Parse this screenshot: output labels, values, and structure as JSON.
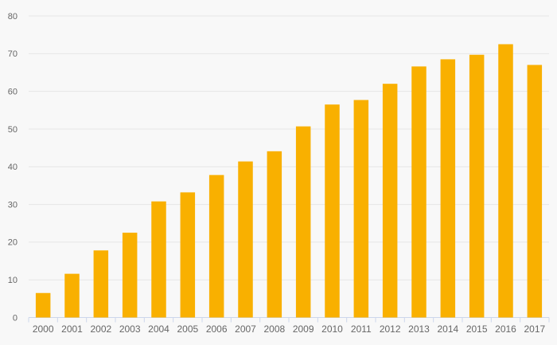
{
  "chart_data": {
    "type": "bar",
    "title": "",
    "subtitle": "",
    "xlabel": "",
    "ylabel": "",
    "categories": [
      "2000",
      "2001",
      "2002",
      "2003",
      "2004",
      "2005",
      "2006",
      "2007",
      "2008",
      "2009",
      "2010",
      "2011",
      "2012",
      "2013",
      "2014",
      "2015",
      "2016",
      "2017"
    ],
    "values": [
      6.5,
      11.6,
      17.8,
      22.5,
      30.8,
      33.2,
      37.8,
      41.4,
      44.1,
      50.7,
      56.5,
      57.7,
      62,
      66.6,
      68.5,
      69.7,
      72.5,
      67
    ],
    "ylim": [
      0,
      80
    ],
    "ytick_interval": 10,
    "ytick_labels": [
      "0",
      "10",
      "20",
      "30",
      "40",
      "50",
      "60",
      "70",
      "80"
    ],
    "grid": true,
    "legend_position": "none",
    "colors": {
      "bar": "#F9B000",
      "background": "#F8F8F8",
      "gridline": "#E6E6E6",
      "axis_line": "#CCD6EB",
      "tick": "#CCD6EB",
      "label": "#666666"
    }
  }
}
